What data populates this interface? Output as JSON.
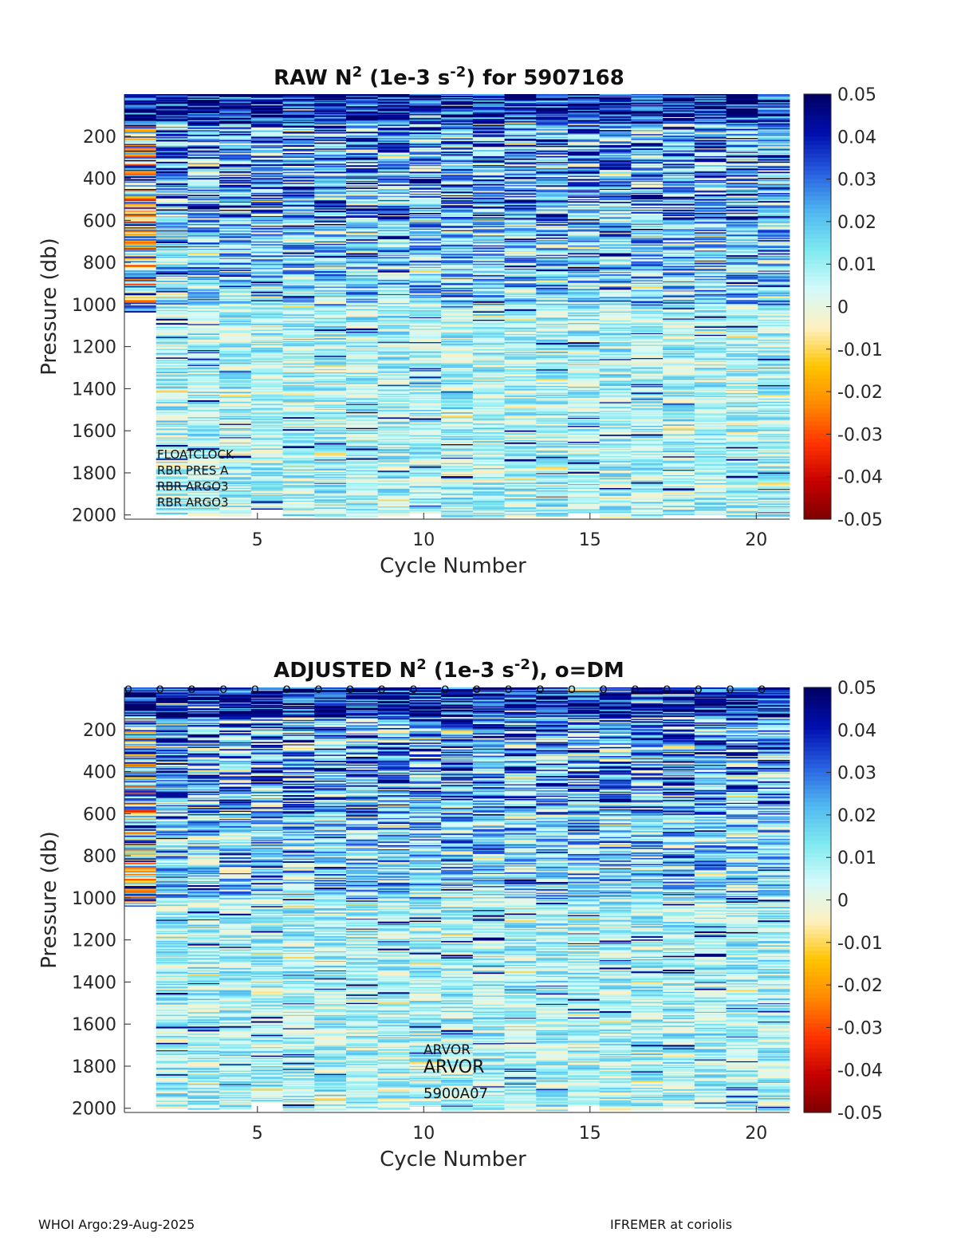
{
  "colors": {
    "colormap": [
      "#7a0000",
      "#c40000",
      "#ff3300",
      "#ff8800",
      "#ffc400",
      "#fff0c0",
      "#d4fafa",
      "#80eaf0",
      "#50b8f0",
      "#2860e0",
      "#0010b0",
      "#000066"
    ]
  },
  "chart_data": [
    {
      "type": "heatmap",
      "title_parts": [
        "RAW N",
        "2",
        " (1e-3 s",
        "-2",
        ") for 5907168"
      ],
      "xlabel": "Cycle Number",
      "ylabel": "Pressure (db)",
      "xlim": [
        1,
        21
      ],
      "ylim": [
        2020,
        0
      ],
      "xticks": [
        5,
        10,
        15,
        20
      ],
      "yticks": [
        200,
        400,
        600,
        800,
        1000,
        1200,
        1400,
        1600,
        1800,
        2000
      ],
      "colorbar": {
        "clim": [
          -0.05,
          0.05
        ],
        "ticks": [
          "0.05",
          "0.04",
          "0.03",
          "0.02",
          "0.01",
          "0",
          "-0.01",
          "-0.02",
          "-0.03",
          "-0.04",
          "-0.05"
        ]
      },
      "cycles": [
        1,
        2,
        3,
        4,
        5,
        6,
        7,
        8,
        9,
        10,
        11,
        12,
        13,
        14,
        15,
        16,
        17,
        18,
        19,
        20,
        21
      ],
      "max_pressure": [
        1040,
        2000,
        2005,
        2005,
        1975,
        2010,
        2010,
        2010,
        2005,
        1990,
        2010,
        2010,
        2010,
        2010,
        1990,
        2010,
        2010,
        2000,
        2000,
        2010,
        2010
      ],
      "annotations": [
        "FLOATCLOCK",
        "RBR PRES A",
        "RBR ARGO3",
        "RBR ARGO3"
      ],
      "dm_markers": false
    },
    {
      "type": "heatmap",
      "title_parts": [
        "ADJUSTED N",
        "2",
        " (1e-3 s",
        "-2",
        "), o=DM"
      ],
      "xlabel": "Cycle Number",
      "ylabel": "Pressure (db)",
      "xlim": [
        1,
        21
      ],
      "ylim": [
        2020,
        0
      ],
      "xticks": [
        5,
        10,
        15,
        20
      ],
      "yticks": [
        200,
        400,
        600,
        800,
        1000,
        1200,
        1400,
        1600,
        1800,
        2000
      ],
      "colorbar": {
        "clim": [
          -0.05,
          0.05
        ],
        "ticks": [
          "0.05",
          "0.04",
          "0.03",
          "0.02",
          "0.01",
          "0",
          "-0.01",
          "-0.02",
          "-0.03",
          "-0.04",
          "-0.05"
        ]
      },
      "cycles": [
        1,
        2,
        3,
        4,
        5,
        6,
        7,
        8,
        9,
        10,
        11,
        12,
        13,
        14,
        15,
        16,
        17,
        18,
        19,
        20,
        21
      ],
      "max_pressure": [
        1040,
        2000,
        2005,
        2005,
        1975,
        2010,
        2010,
        2010,
        2005,
        1990,
        2010,
        2010,
        2010,
        2010,
        1990,
        2010,
        2010,
        2000,
        2000,
        2010,
        2010
      ],
      "annotations": [
        "ARVOR",
        "ARVOR",
        "5900A07"
      ],
      "dm_markers": true,
      "dm_marker_symbol": "o"
    }
  ],
  "footer": {
    "left": "WHOI Argo:29-Aug-2025",
    "right": "IFREMER at coriolis"
  }
}
